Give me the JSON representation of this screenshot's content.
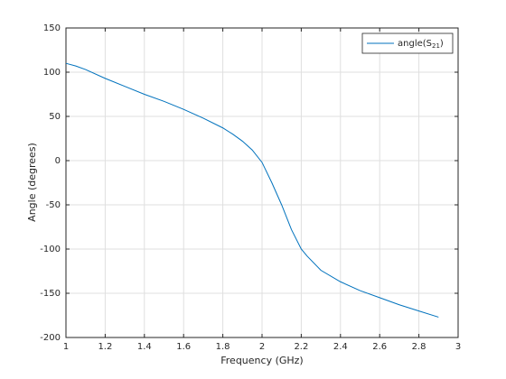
{
  "chart_data": {
    "type": "line",
    "x_label": "Frequency (GHz)",
    "y_label": "Angle (degrees)",
    "x": [
      1.0,
      1.05,
      1.1,
      1.2,
      1.3,
      1.4,
      1.5,
      1.6,
      1.7,
      1.8,
      1.85,
      1.9,
      1.95,
      2.0,
      2.05,
      2.1,
      2.15,
      2.2,
      2.23,
      2.3,
      2.4,
      2.5,
      2.6,
      2.7,
      2.8,
      2.9
    ],
    "series": [
      {
        "name": "angle(S21)",
        "color": "#0072bd",
        "values": [
          110,
          107,
          103,
          93,
          84,
          75,
          67,
          58,
          48,
          37,
          30,
          22,
          12,
          -2,
          -25,
          -50,
          -78,
          -100,
          -108,
          -124,
          -137,
          -147,
          -155,
          -163,
          -170,
          -177
        ]
      }
    ],
    "xlim": [
      1,
      3
    ],
    "xticks": [
      1,
      1.2,
      1.4,
      1.6,
      1.8,
      2,
      2.2,
      2.4,
      2.6,
      2.8,
      3
    ],
    "ylim": [
      -200,
      150
    ],
    "yticks": [
      -200,
      -150,
      -100,
      -50,
      0,
      50,
      100,
      150
    ],
    "grid": true,
    "legend": "northeast"
  }
}
